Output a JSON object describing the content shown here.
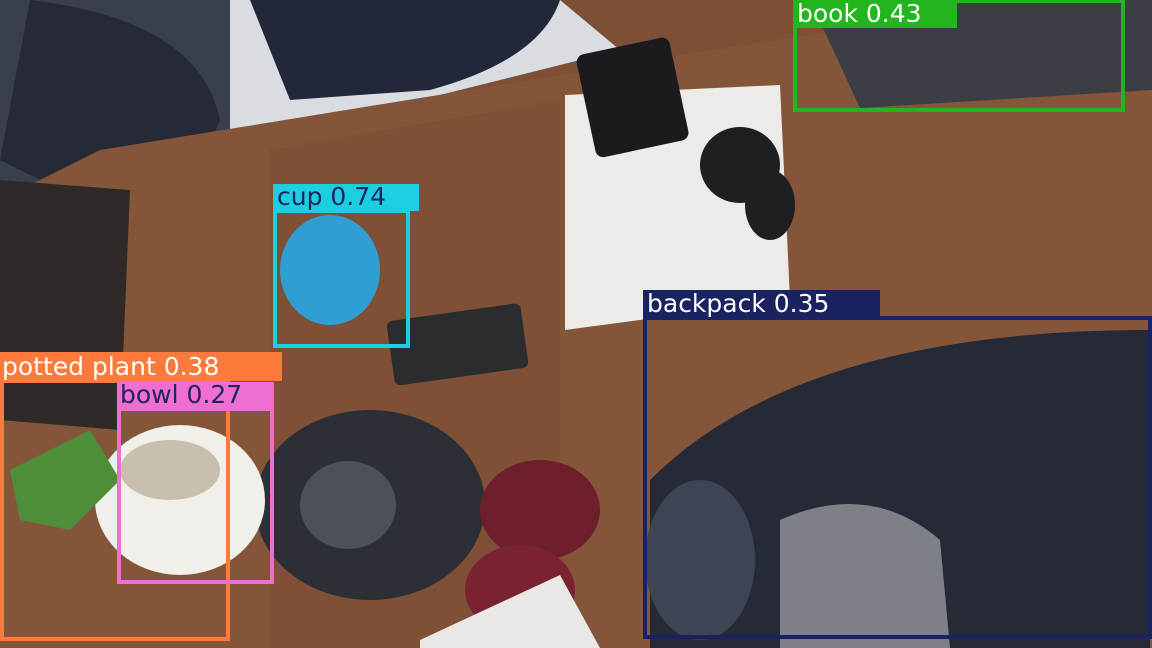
{
  "detections": [
    {
      "text": "book 0.43"
    },
    {
      "text": "cup 0.74"
    },
    {
      "text": "backpack 0.35"
    },
    {
      "text": "potted plant 0.38"
    },
    {
      "text": "bowl 0.27"
    }
  ]
}
